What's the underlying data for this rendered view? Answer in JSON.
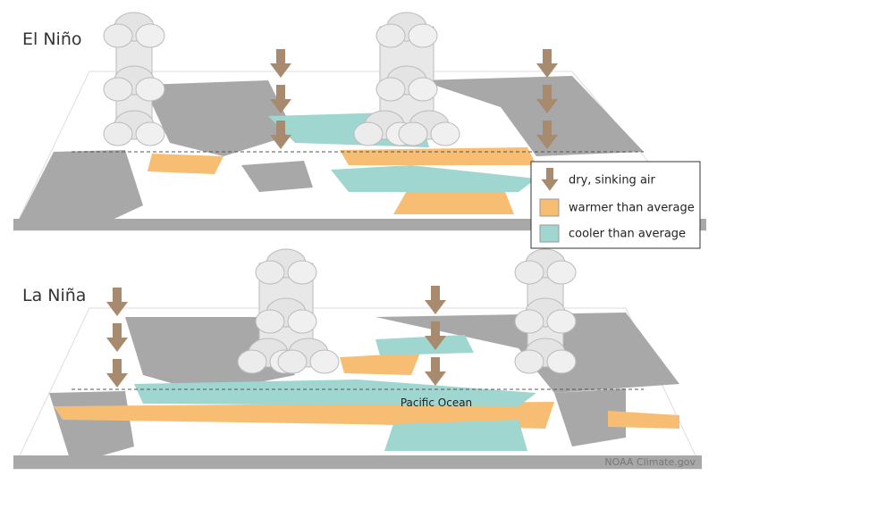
{
  "panels": [
    {
      "label": "El Niño"
    },
    {
      "label": "La Niña",
      "annotation": "Pacific Ocean"
    }
  ],
  "legend": {
    "items": [
      {
        "label": "dry, sinking air"
      },
      {
        "label": "warmer than average"
      },
      {
        "label": "cooler than average"
      }
    ]
  },
  "credit": "NOAA Climate.gov"
}
